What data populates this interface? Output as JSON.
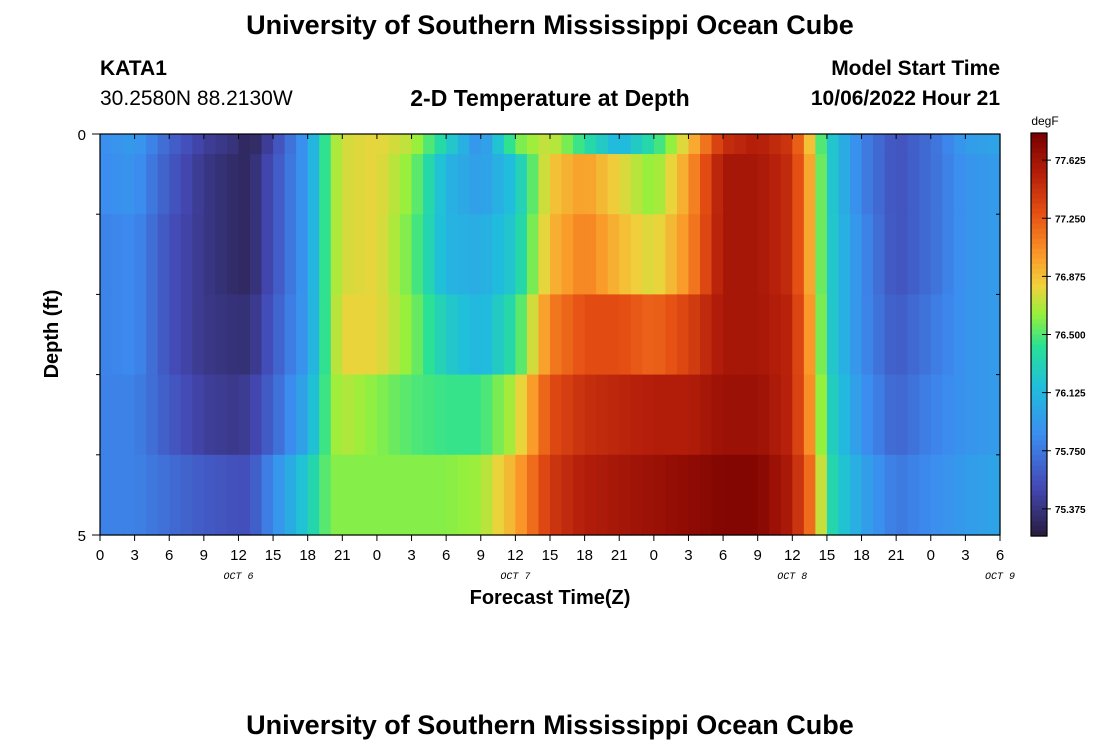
{
  "header": {
    "title": "University of Southern Mississippi Ocean Cube",
    "station": "KATA1",
    "coords": "30.2580N  88.2130W",
    "plot_title": "2-D Temperature at Depth",
    "model_start_label": "Model Start Time",
    "model_start_value": "10/06/2022 Hour 21"
  },
  "footer": {
    "title": "University of Southern Mississippi Ocean Cube"
  },
  "chart_data": {
    "type": "heatmap",
    "title": "2-D Temperature at Depth",
    "xlabel": "Forecast Time(Z)",
    "ylabel": "Depth (ft)",
    "units": "degF",
    "x_tick_labels": [
      "0",
      "3",
      "6",
      "9",
      "12",
      "15",
      "18",
      "21",
      "0",
      "3",
      "6",
      "9",
      "12",
      "15",
      "18",
      "21",
      "0",
      "3",
      "6",
      "9",
      "12",
      "15",
      "18",
      "21",
      "0",
      "3",
      "6"
    ],
    "day_labels": [
      {
        "label": "OCT 6",
        "hour": 12
      },
      {
        "label": "OCT 7",
        "hour": 36
      },
      {
        "label": "OCT 8",
        "hour": 60
      },
      {
        "label": "OCT 9",
        "hour": 78
      }
    ],
    "x_range_hours": [
      0,
      78
    ],
    "y_tick_labels": [
      "0",
      "5"
    ],
    "ylim": [
      0,
      5
    ],
    "depth_levels_ft": [
      0,
      0.5,
      1.5,
      2.5,
      3.5,
      4.5
    ],
    "colorbar": {
      "min": 75.2,
      "max": 77.8,
      "tick_values": [
        75.375,
        75.75,
        76.125,
        76.5,
        76.875,
        77.25,
        77.625
      ],
      "tick_labels": [
        "75.375",
        "75.750",
        "76.125",
        "76.500",
        "76.875",
        "77.250",
        "77.625"
      ]
    },
    "keyframes_hours": [
      0,
      3,
      6,
      9,
      12,
      13,
      15,
      18,
      20,
      21,
      24,
      27,
      30,
      33,
      36,
      39,
      42,
      45,
      48,
      51,
      54,
      57,
      60,
      62,
      63,
      66,
      69,
      72,
      75,
      78
    ],
    "keyframe_values": [
      [
        75.85,
        75.95,
        75.65,
        75.45,
        75.35,
        75.25,
        75.5,
        75.95,
        76.6,
        76.75,
        76.8,
        76.7,
        76.3,
        75.85,
        76.55,
        76.75,
        76.4,
        76.1,
        76.4,
        76.85,
        77.45,
        77.55,
        77.4,
        76.7,
        76.3,
        75.8,
        75.55,
        75.7,
        75.95,
        76.0
      ],
      [
        75.85,
        75.9,
        75.6,
        75.4,
        75.3,
        75.3,
        75.55,
        75.95,
        76.6,
        76.75,
        76.8,
        76.6,
        76.1,
        75.95,
        76.2,
        76.85,
        77.0,
        76.8,
        76.6,
        77.0,
        77.6,
        77.6,
        77.45,
        76.8,
        76.3,
        75.8,
        75.55,
        75.7,
        75.9,
        75.95
      ],
      [
        75.8,
        75.85,
        75.55,
        75.4,
        75.3,
        75.3,
        75.55,
        75.95,
        76.6,
        76.75,
        76.8,
        76.55,
        76.1,
        76.05,
        76.25,
        76.9,
        77.1,
        76.9,
        76.75,
        77.05,
        77.6,
        77.6,
        77.45,
        76.8,
        76.3,
        75.85,
        75.55,
        75.7,
        75.9,
        75.95
      ],
      [
        75.8,
        75.85,
        75.55,
        75.4,
        75.35,
        75.35,
        75.6,
        75.95,
        76.6,
        76.8,
        76.8,
        76.6,
        76.25,
        76.1,
        76.4,
        77.1,
        77.3,
        77.3,
        77.2,
        77.35,
        77.6,
        77.6,
        77.5,
        76.85,
        76.3,
        75.85,
        75.6,
        75.75,
        75.9,
        75.95
      ],
      [
        75.8,
        75.8,
        75.6,
        75.45,
        75.4,
        75.45,
        75.65,
        76.05,
        76.6,
        76.7,
        76.6,
        76.5,
        76.45,
        76.45,
        76.7,
        77.3,
        77.45,
        77.5,
        77.55,
        77.55,
        77.65,
        77.65,
        77.5,
        76.9,
        76.35,
        75.9,
        75.65,
        75.8,
        75.9,
        75.95
      ],
      [
        75.8,
        75.8,
        75.7,
        75.6,
        75.55,
        75.55,
        75.85,
        76.25,
        76.6,
        76.6,
        76.6,
        76.6,
        76.6,
        76.65,
        76.95,
        77.4,
        77.55,
        77.6,
        77.65,
        77.7,
        77.75,
        77.75,
        77.55,
        77.05,
        76.4,
        76.0,
        75.75,
        75.85,
        75.95,
        76.0
      ]
    ],
    "grid": false,
    "legend": "colorbar-right"
  }
}
